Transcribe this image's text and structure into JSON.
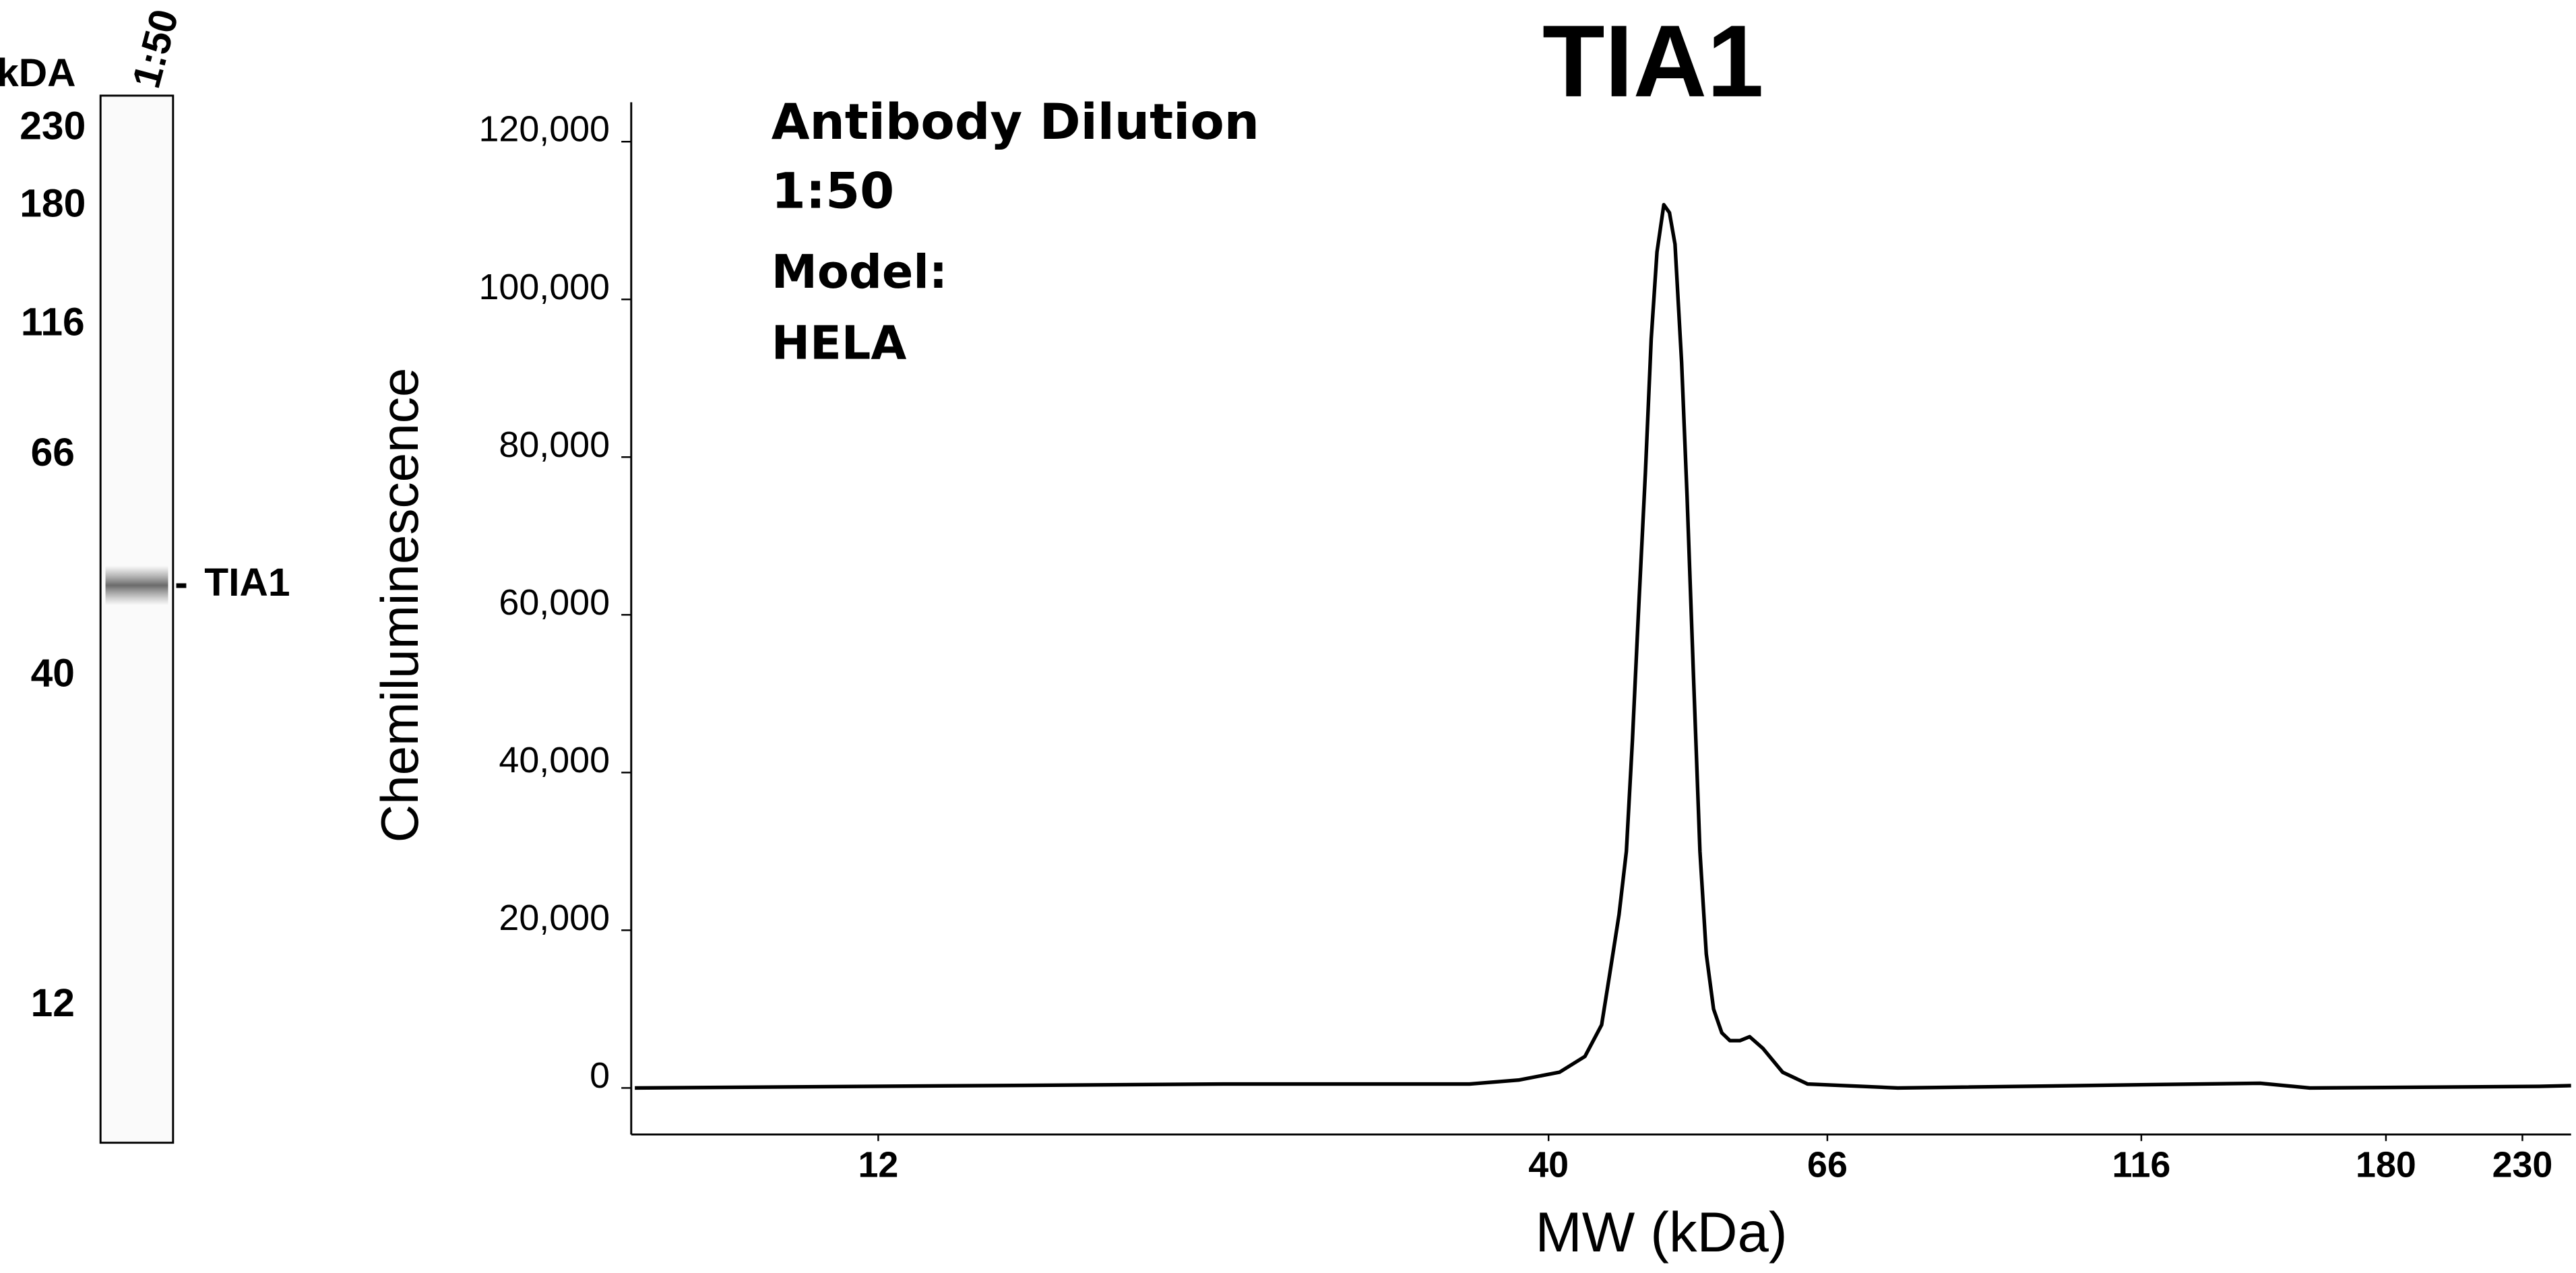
{
  "lane": {
    "units": "kDA",
    "sample": "1:50",
    "markers": [
      230,
      180,
      116,
      66,
      40,
      12
    ],
    "band_label": "TIA1"
  },
  "chart_data": {
    "type": "line",
    "title": "TIA1",
    "annotations": [
      "Antibody Dilution",
      "1:50",
      "Model:",
      "HELA"
    ],
    "y_label": "Chemiluminescence",
    "x_label": "MW (kDa)",
    "x": [
      7.75,
      22.3,
      34.7,
      37.9,
      40.8,
      42.7,
      44.0,
      44.7,
      45.4,
      46.0,
      46.5,
      47.0,
      47.6,
      48.1,
      48.6,
      49.2,
      49.7,
      50.2,
      50.8,
      51.3,
      51.9,
      52.5,
      53.1,
      53.8,
      54.6,
      55.4,
      56.4,
      57.4,
      58.8,
      60.9,
      63.7,
      74.9,
      143.6,
      157,
      237,
      251
    ],
    "values": [
      0,
      500,
      500,
      1000,
      2000,
      4000,
      8000,
      15000,
      22000,
      30000,
      44000,
      60000,
      78000,
      95000,
      106000,
      112000,
      111000,
      107000,
      92000,
      75000,
      52000,
      30000,
      17000,
      10000,
      7000,
      6000,
      6000,
      6500,
      5000,
      2000,
      500,
      0,
      600,
      0,
      200,
      300
    ],
    "color": "#000000",
    "xscale": "log",
    "xlim": [
      7.7,
      251
    ],
    "xticks": [
      12,
      40,
      66,
      116,
      180,
      230
    ],
    "ylim": [
      -5900,
      125000
    ],
    "yticks": [
      0,
      {
        "value": 20000,
        "label": "20,000"
      },
      {
        "value": 40000,
        "label": "40,000"
      },
      {
        "value": 60000,
        "label": "60,000"
      },
      {
        "value": 80000,
        "label": "80,000"
      },
      {
        "value": 100000,
        "label": "100,000"
      },
      {
        "value": 120000,
        "label": "120,000"
      }
    ],
    "grid": false
  }
}
